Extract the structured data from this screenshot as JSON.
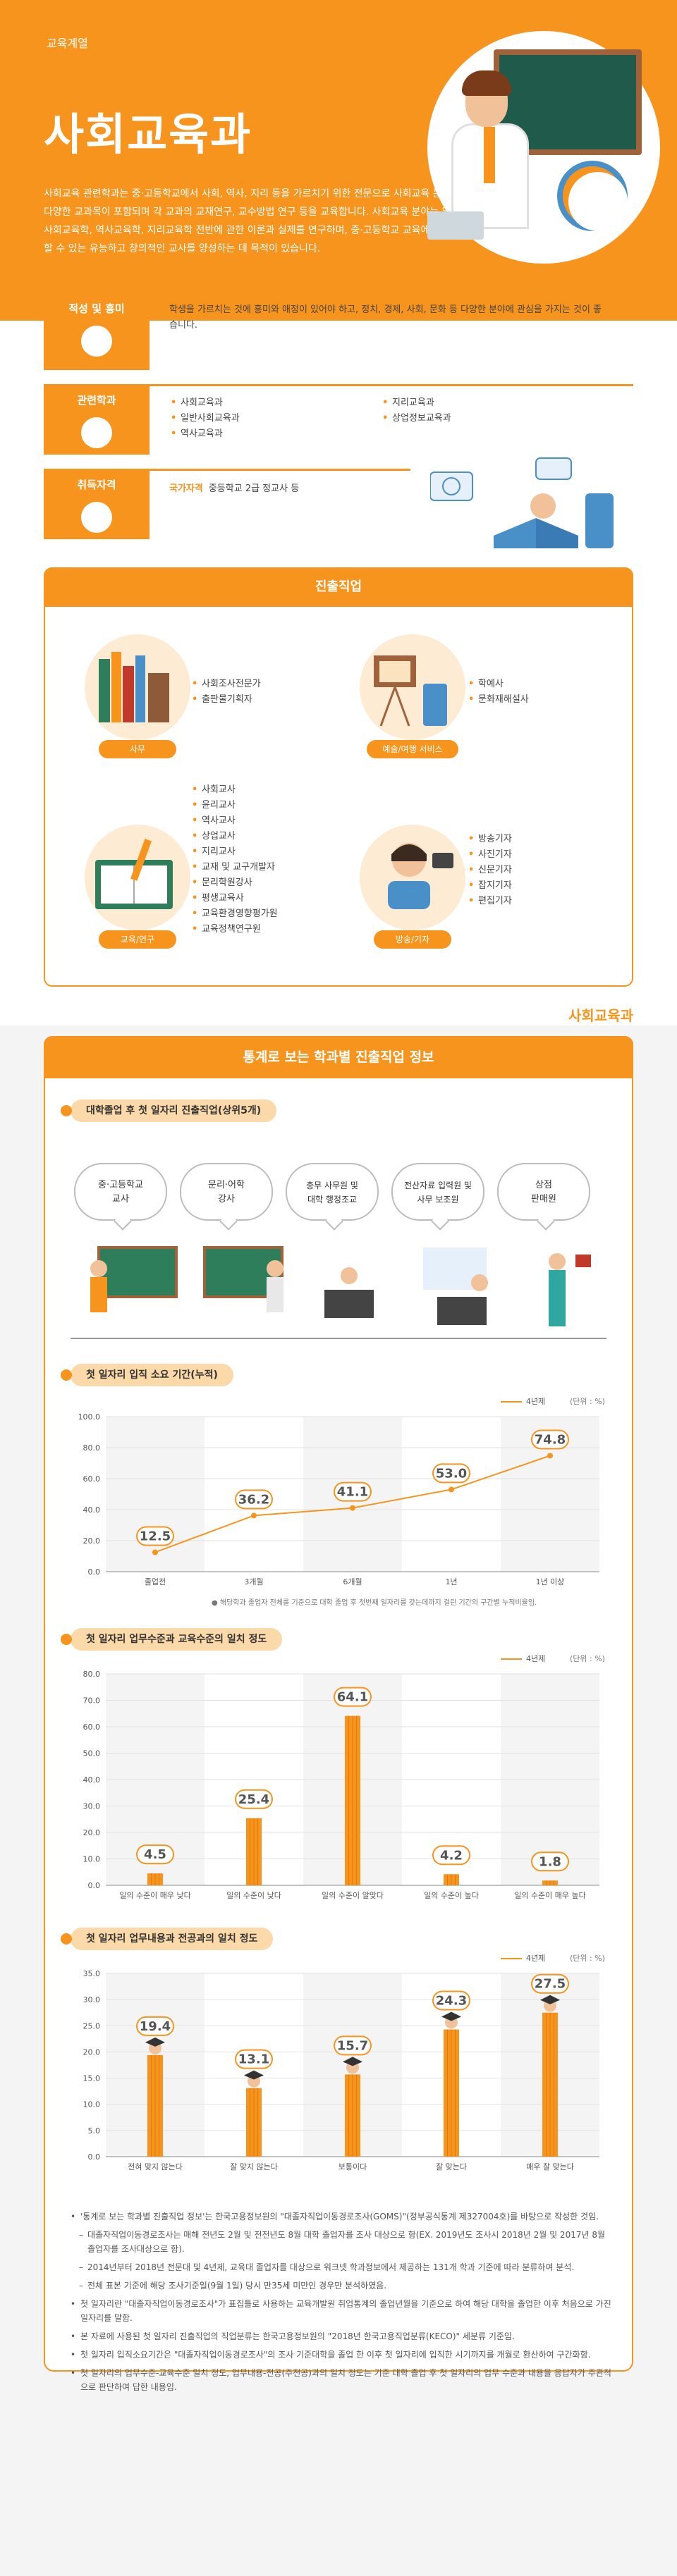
{
  "header": {
    "category": "교육계열",
    "title": "사회교육과",
    "intro": "사회교육 관련학과는 중·고등학교에서 사회, 역사, 지리 등을 가르치기 위한 전문으로 사회교육 분야의 다양한 교과목이 포함되며 각 교과의 교재연구, 교수방법 연구 등을 교육합니다. 사회교육 분야는 일반사회교육학, 역사교육학, 지리교육학 전반에 관한 이론과 실제를 연구하며, 중·고등학교 교육에 이바지할 수 있는 유능하고 창의적인 교사를 양성하는 데 목적이 있습니다."
  },
  "aptitude": {
    "tag": "적성 및 흥미",
    "text": "학생을 가르치는 것에 흥미와 애정이 있어야 하고, 정치, 경제, 사회, 문화 등 다양한 분야에 관심을 가지는 것이 좋습니다."
  },
  "related": {
    "tag": "관련학과",
    "col1": [
      "사회교육과",
      "일반사회교육과",
      "역사교육과"
    ],
    "col2": [
      "지리교육과",
      "상업정보교육과"
    ]
  },
  "license": {
    "tag": "취득자격",
    "highlight": "국가자격",
    "text": "중등학교 2급 정교사 등"
  },
  "careers": {
    "title": "진출직업",
    "groups": [
      {
        "label": "사무",
        "items": [
          "사회조사전문가",
          "출판물기획자"
        ]
      },
      {
        "label": "예술/여행 서비스",
        "items": [
          "학예사",
          "문화재해설사"
        ]
      },
      {
        "label": "교육/연구",
        "items": [
          "사회교사",
          "윤리교사",
          "역사교사",
          "상업교사",
          "지리교사",
          "교재 및 교구개발자",
          "문리학원강사",
          "평생교육사",
          "교육환경영향평가원",
          "교육정책연구원"
        ]
      },
      {
        "label": "방송/기자",
        "items": [
          "방송기자",
          "사진기자",
          "신문기자",
          "잡지기자",
          "편집기자"
        ]
      }
    ]
  },
  "stats": {
    "brand": "사회교육과",
    "title": "통계로 보는 학과별 진출직업 정보",
    "top_jobs_title": "대학졸업 후 첫 일자리 진출직업(상위5개)",
    "top_jobs": [
      "중·고등학교\n교사",
      "문리·어학\n강사",
      "총무 사무원 및\n대학 행정조교",
      "전산자료 입력원 및\n사무 보조원",
      "상점\n판매원"
    ],
    "legend_label": "4년제",
    "unit": "(단위 : %)",
    "chart1_note": "● 해당학과 졸업자 전체를 기준으로 대학 졸업 후 첫번째 일자리를 갖는데까지 걸린 기간의 구간별 누적비율임.",
    "colors": {
      "accent": "#f7941d",
      "light": "#fcd9a8",
      "bg": "#f4f4f4"
    }
  },
  "chart_data": [
    {
      "type": "line",
      "title": "첫 일자리 입직 소요 기간(누적)",
      "categories": [
        "졸업전",
        "3개월",
        "6개월",
        "1년",
        "1년 이상"
      ],
      "series": [
        {
          "name": "4년제",
          "values": [
            12.5,
            36.2,
            41.1,
            53.0,
            74.8
          ]
        }
      ],
      "value_labels": [
        "12.5",
        "36.2",
        "41.1",
        "53.0",
        "74.8"
      ],
      "ylim": [
        0,
        100
      ],
      "yticks": [
        "0.0",
        "20.0",
        "40.0",
        "60.0",
        "80.0",
        "100.0"
      ],
      "grid": true
    },
    {
      "type": "bar",
      "title": "첫 일자리 업무수준과 교육수준의 일치 정도",
      "categories": [
        "일의 수준이 매우 낮다",
        "일의 수준이 낮다",
        "일의 수준이 알맞다",
        "일의 수준이 높다",
        "일의 수준이 매우 높다"
      ],
      "series": [
        {
          "name": "4년제",
          "values": [
            4.5,
            25.4,
            64.1,
            4.2,
            1.8
          ]
        }
      ],
      "value_labels": [
        "4.5",
        "25.4",
        "64.1",
        "4.2",
        "1.8"
      ],
      "ylim": [
        0,
        80
      ],
      "yticks": [
        "0.0",
        "10.0",
        "20.0",
        "30.0",
        "40.0",
        "50.0",
        "60.0",
        "70.0",
        "80.0"
      ],
      "grid": true
    },
    {
      "type": "bar",
      "title": "첫 일자리 업무내용과 전공과의 일치 정도",
      "categories": [
        "전혀 맞지 않는다",
        "잘 맞지 않는다",
        "보통이다",
        "잘 맞는다",
        "매우 잘 맞는다"
      ],
      "series": [
        {
          "name": "4년제",
          "values": [
            19.4,
            13.1,
            15.7,
            24.3,
            27.5
          ]
        }
      ],
      "value_labels": [
        "19.4",
        "13.1",
        "15.7",
        "24.3",
        "27.5"
      ],
      "ylim": [
        0,
        35
      ],
      "yticks": [
        "0.0",
        "5.0",
        "10.0",
        "15.0",
        "20.0",
        "25.0",
        "30.0",
        "35.0"
      ],
      "grid": true
    }
  ],
  "notes": [
    {
      "text": "'통계로 보는 학과별 진출직업 정보'는 한국고용정보원의 \"대졸자직업이동경로조사(GOMS)\"(정부공식통계 제327004호)를 바탕으로 작성한 것임.",
      "sub": false
    },
    {
      "text": "대졸자직업이동경로조사는 매해 전년도 2월 및 전전년도 8월 대학 졸업자를 조사 대상으로 함(EX. 2019년도 조사시 2018년 2월 및 2017년 8월 졸업자를 조사대상으로 함).",
      "sub": true
    },
    {
      "text": "2014년부터 2018년 전문대 및 4년제, 교육대 졸업자를 대상으로 워크넷 학과정보에서 제공하는 131개 학과 기준에 따라 분류하여 분석.",
      "sub": true
    },
    {
      "text": "전체 표본 기준에 해당 조사기준일(9월 1일) 당시 만35세 미만인 경우만 분석하였음.",
      "sub": true
    },
    {
      "text": "첫 일자리란 \"대졸자직업이동경로조사\"가 표집틀로 사용하는 교육개발원 취업통계의 졸업년월을 기준으로 하여 해당 대학을 졸업한 이후 처음으로 가진 일자리를 말함.",
      "sub": false
    },
    {
      "text": "본 자료에 사용된 첫 일자리 진출직업의 직업분류는 한국고용정보원의 \"2018년 한국고용직업분류(KECO)\" 세분류 기준임.",
      "sub": false
    },
    {
      "text": "첫 일자리 입직소요기간은 \"대졸자직업이동경로조사\"의 조사 기준대학을 졸업 한 이후 첫 일자리에 입직한 시기까지를 개월로 환산하여 구간화함.",
      "sub": false
    },
    {
      "text": "첫 일자리의 업무수준-교육수준 일치 정도, 업무내용-전공(주전공)과의 일치 정도는 기준 대학 졸업 후 첫 일자리의 업무 수준과 내용을 응답자가 주관적으로 판단하여 답한 내용임.",
      "sub": false
    }
  ]
}
